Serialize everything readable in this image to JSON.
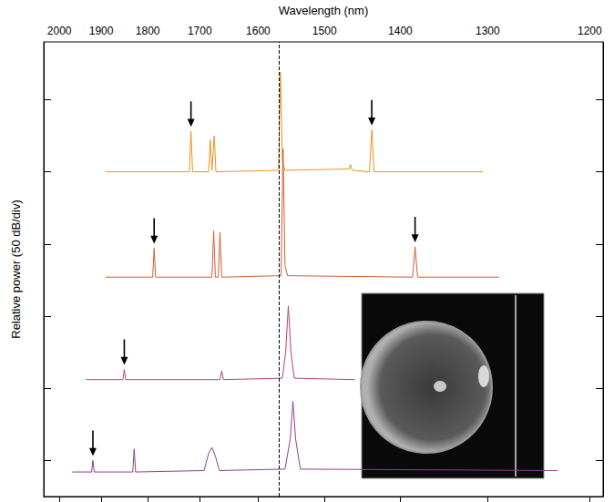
{
  "chart_data": {
    "type": "line",
    "x_label": "Wavelength (nm)",
    "y_label": "Relative power (50 dB/div)",
    "xlim": [
      2040,
      1188
    ],
    "xticks": [
      2000,
      1900,
      1800,
      1700,
      1600,
      1500,
      1400,
      1300,
      1200
    ],
    "ylim": [
      0,
      315
    ],
    "yticks": [
      25,
      75,
      125,
      175,
      225,
      275
    ],
    "tick_labels": "x",
    "grid": false,
    "vline": {
      "x": 1567,
      "line_style": "dashed"
    },
    "series": [
      {
        "color": "#e8931e",
        "x": [
          1890,
          1719,
          1716,
          1713,
          1684,
          1681,
          1678,
          1674,
          1671,
          1568,
          1565,
          1562,
          1558,
          1466,
          1464,
          1462,
          1439,
          1436,
          1433,
          1305
        ],
        "values": [
          225,
          225,
          253,
          225,
          225,
          247,
          226,
          250,
          225,
          226,
          294,
          232,
          226,
          227,
          230,
          226,
          225,
          254,
          225,
          225
        ],
        "arrows": [
          1716,
          1436
        ]
      },
      {
        "color": "#cf5f35",
        "x": [
          1890,
          1790,
          1787,
          1784,
          1678,
          1675,
          1672,
          1667,
          1664,
          1661,
          1564,
          1561,
          1558,
          1554,
          1385,
          1382,
          1379,
          1288
        ],
        "values": [
          152,
          152,
          172,
          152,
          152,
          184,
          152,
          152,
          183,
          152,
          153,
          241,
          160,
          153,
          152,
          173,
          152,
          152
        ],
        "arrows": [
          1787,
          1382
        ]
      },
      {
        "color": "#b8407e",
        "x": [
          1935,
          1852,
          1849,
          1846,
          1664,
          1661,
          1658,
          1562,
          1557,
          1553,
          1549,
          1544,
          1458
        ],
        "values": [
          81,
          81,
          88,
          81,
          81,
          87,
          81,
          82,
          100,
          132,
          100,
          82,
          81
        ],
        "arrows": [
          1849
        ]
      },
      {
        "color": "#8e3f8e",
        "x": [
          1968,
          1922,
          1919,
          1916,
          1831,
          1828,
          1825,
          1692,
          1684,
          1678,
          1672,
          1665,
          1558,
          1550,
          1546,
          1542,
          1535,
          1230
        ],
        "values": [
          17,
          17,
          25,
          17,
          17,
          33,
          17,
          18,
          30,
          34,
          28,
          18,
          19,
          40,
          66,
          40,
          19,
          18
        ],
        "arrows": [
          1919
        ]
      }
    ]
  }
}
